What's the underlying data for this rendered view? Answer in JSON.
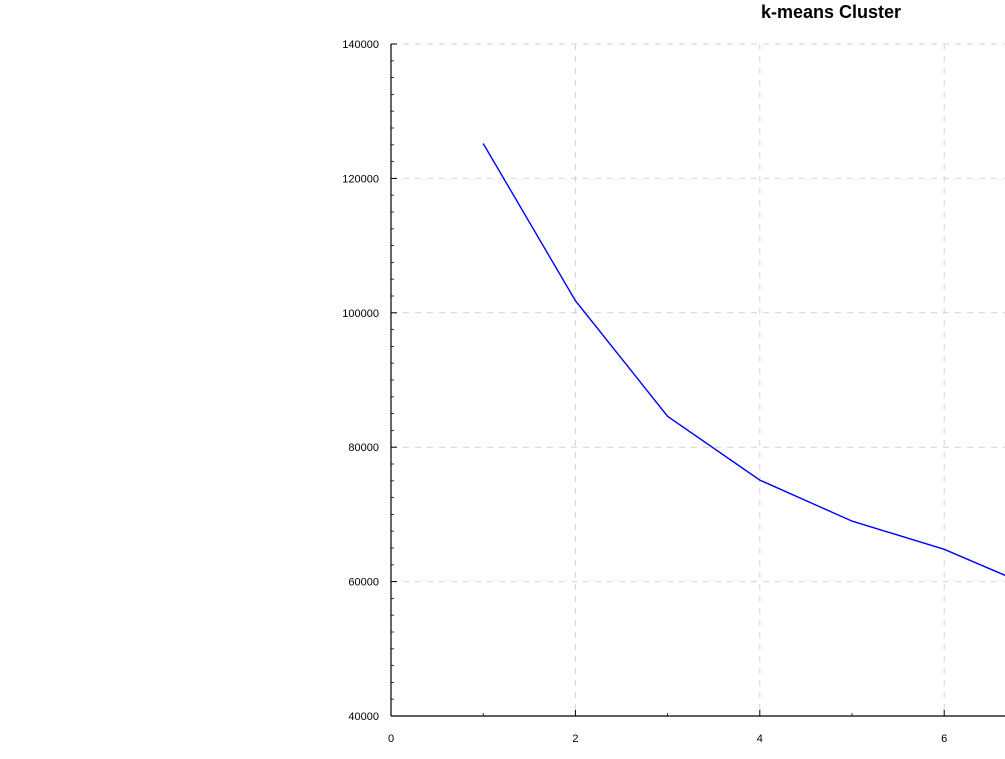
{
  "chart_data": {
    "type": "line",
    "title": "k-means Cluster",
    "xlabel": "",
    "ylabel": "",
    "xlim": [
      0,
      6.6
    ],
    "ylim": [
      40000,
      140000
    ],
    "x_ticks": [
      0,
      2,
      4,
      6
    ],
    "y_ticks": [
      40000,
      60000,
      80000,
      100000,
      120000,
      140000
    ],
    "x_tick_labels": [
      "0",
      "2",
      "4",
      "6"
    ],
    "y_tick_labels": [
      "40000",
      "60000",
      "80000",
      "100000",
      "120000",
      "140000"
    ],
    "grid": true,
    "series": [
      {
        "x": [
          1,
          2,
          3,
          4,
          5,
          6,
          6.7
        ],
        "y": [
          125200,
          101800,
          84600,
          75100,
          69000,
          64800,
          60700
        ],
        "color": "#0000ff"
      }
    ]
  }
}
